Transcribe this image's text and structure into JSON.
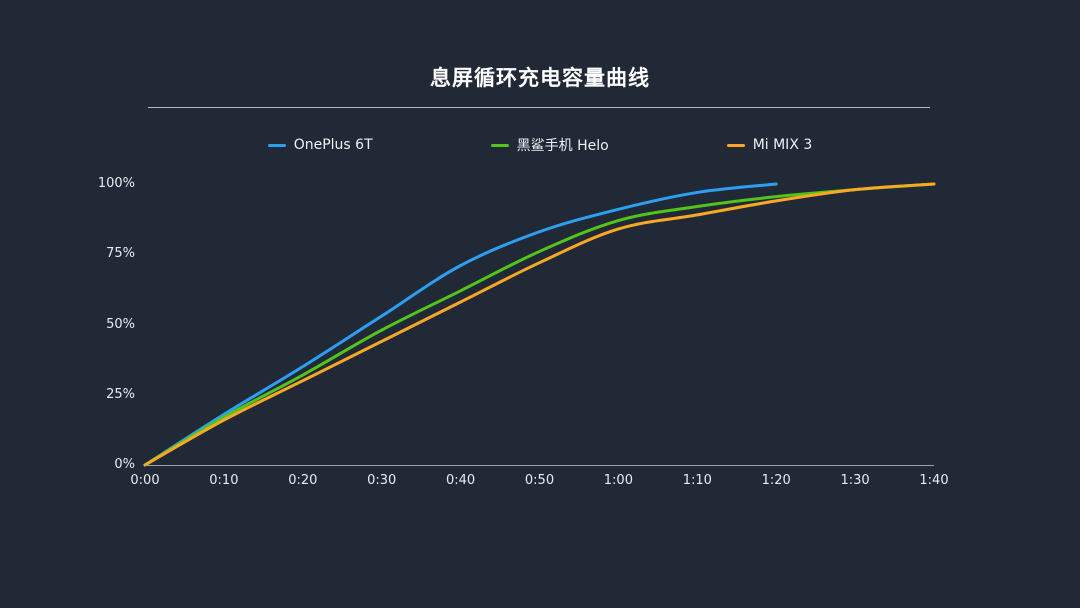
{
  "title": "息屏循环充电容量曲线",
  "colors": {
    "background": "#212936",
    "title_text": "#ffffff",
    "axis_text": "#e8ebef",
    "axis_line": "#9aa1ab",
    "divider": "#cfd4da",
    "series_blue": "#2d9ff3",
    "series_green": "#52c41a",
    "series_orange": "#f9a825"
  },
  "chart_data": {
    "type": "line",
    "title": "息屏循环充电容量曲线",
    "xlabel": "",
    "ylabel": "",
    "x_tick_labels": [
      "0:00",
      "0:10",
      "0:20",
      "0:30",
      "0:40",
      "0:50",
      "1:00",
      "1:10",
      "1:20",
      "1:30",
      "1:40"
    ],
    "y_tick_labels": [
      "100%",
      "75%",
      "50%",
      "25%",
      "0%"
    ],
    "y_tick_values": [
      100,
      75,
      50,
      25,
      0
    ],
    "x_minutes_range": [
      0,
      100
    ],
    "ylim": [
      0,
      100
    ],
    "grid": false,
    "legend_position": "top-center",
    "series": [
      {
        "name": "OnePlus 6T",
        "color": "#2d9ff3",
        "x_minutes": [
          0,
          10,
          20,
          30,
          40,
          50,
          60,
          70,
          80
        ],
        "values": [
          0,
          18,
          35,
          53,
          71,
          83,
          91,
          97,
          100
        ]
      },
      {
        "name": "黑鲨手机 Helo",
        "color": "#52c41a",
        "x_minutes": [
          0,
          10,
          20,
          30,
          40,
          50,
          60,
          70,
          80,
          90,
          100
        ],
        "values": [
          0,
          17,
          32,
          48,
          62,
          76,
          87,
          92,
          95.5,
          98,
          100
        ]
      },
      {
        "name": "Mi MIX 3",
        "color": "#f9a825",
        "x_minutes": [
          0,
          10,
          20,
          30,
          40,
          50,
          60,
          70,
          80,
          90,
          100
        ],
        "values": [
          0,
          16,
          30,
          44,
          58,
          72,
          84,
          89,
          94,
          98,
          100
        ]
      }
    ]
  }
}
